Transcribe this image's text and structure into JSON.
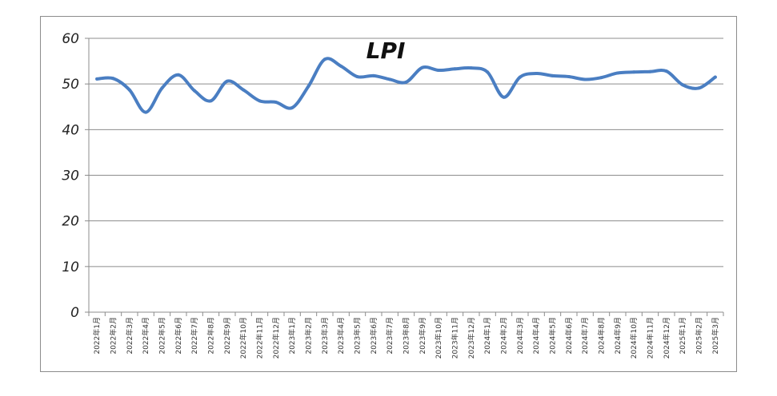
{
  "chart_data": {
    "type": "line",
    "title": "LPI",
    "xlabel": "",
    "ylabel": "",
    "ylim": [
      0,
      60
    ],
    "yticks": [
      0,
      10,
      20,
      30,
      40,
      50,
      60
    ],
    "grid": true,
    "legend": "none",
    "categories": [
      "2022年1月",
      "2022年2月",
      "2022年3月",
      "2022年4月",
      "2022年5月",
      "2022年6月",
      "2022年7月",
      "2022年8月",
      "2022年9月",
      "2022年10月",
      "2022年11月",
      "2022年12月",
      "2023年1月",
      "2023年2月",
      "2023年3月",
      "2023年4月",
      "2023年5月",
      "2023年6月",
      "2023年7月",
      "2023年8月",
      "2023年9月",
      "2023年10月",
      "2023年11月",
      "2023年12月",
      "2024年1月",
      "2024年2月",
      "2024年3月",
      "2024年4月",
      "2024年5月",
      "2024年6月",
      "2024年7月",
      "2024年8月",
      "2024年9月",
      "2024年10月",
      "2024年11月",
      "2024年12月",
      "2025年1月",
      "2025年2月",
      "2025年3月"
    ],
    "series": [
      {
        "color": "#4a7ec2",
        "values": [
          51.1,
          51.2,
          48.7,
          43.8,
          49.1,
          52.0,
          48.5,
          46.3,
          50.6,
          48.7,
          46.3,
          46.0,
          44.8,
          49.5,
          55.4,
          53.9,
          51.6,
          51.8,
          51.0,
          50.4,
          53.6,
          53.0,
          53.3,
          53.5,
          52.6,
          47.1,
          51.5,
          52.3,
          51.8,
          51.6,
          51.0,
          51.4,
          52.4,
          52.6,
          52.7,
          52.8,
          49.8,
          49.1,
          51.5
        ]
      }
    ]
  }
}
